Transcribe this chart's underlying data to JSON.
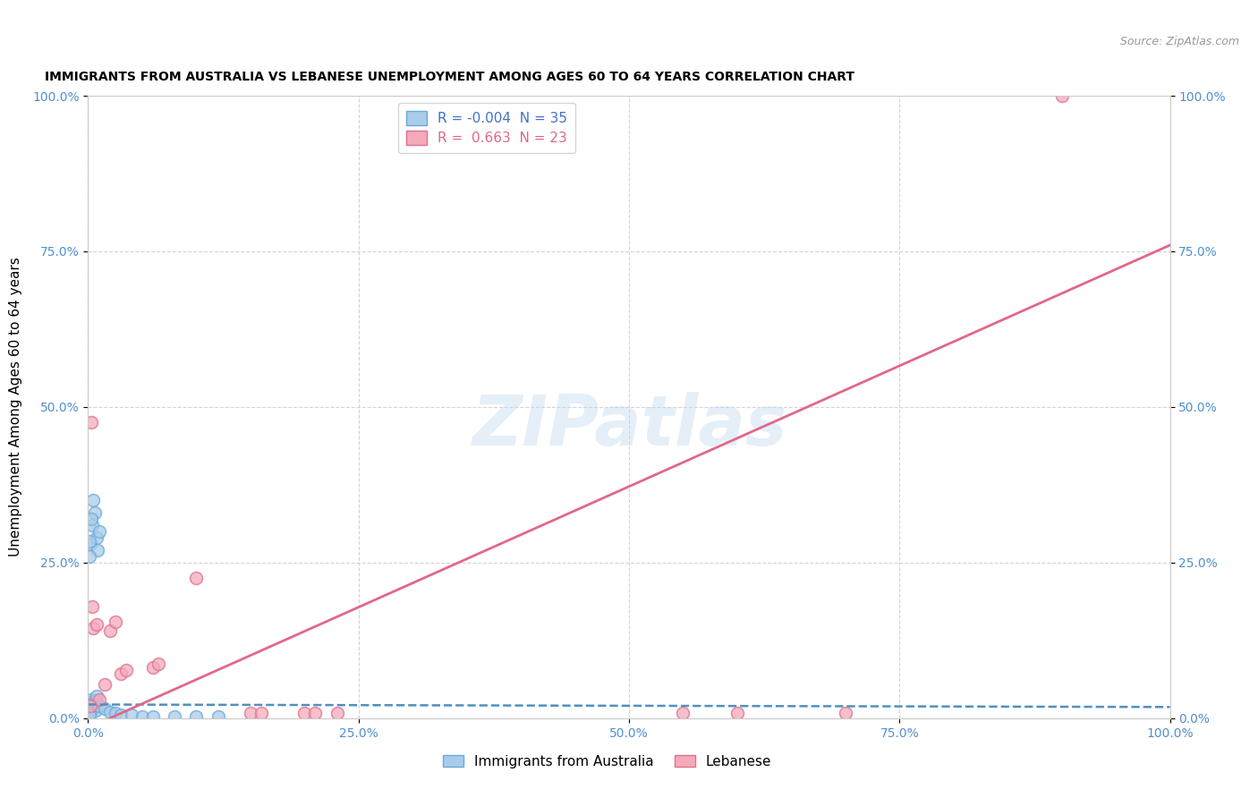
{
  "title": "IMMIGRANTS FROM AUSTRALIA VS LEBANESE UNEMPLOYMENT AMONG AGES 60 TO 64 YEARS CORRELATION CHART",
  "source": "Source: ZipAtlas.com",
  "ylabel": "Unemployment Among Ages 60 to 64 years",
  "watermark": "ZIPatlas",
  "legend1_label": "Immigrants from Australia",
  "legend2_label": "Lebanese",
  "r1": "-0.004",
  "n1": "35",
  "r2": "0.663",
  "n2": "23",
  "color_blue_fill": "#A8CCEA",
  "color_blue_edge": "#6AAAD8",
  "color_pink_fill": "#F5AABC",
  "color_pink_edge": "#E07090",
  "color_blue_line": "#5090C0",
  "color_pink_line": "#E06888",
  "color_r_blue": "#4472C4",
  "color_r_pink": "#E06888",
  "background": "#FFFFFF",
  "grid_color": "#D0D0D0",
  "axis_tick_color": "#5090D0",
  "blue_scatter_x": [
    0.2,
    0.4,
    0.6,
    0.5,
    0.8,
    0.9,
    1.0,
    0.3,
    0.1,
    0.15,
    0.05,
    0.1,
    0.2,
    0.3,
    0.4,
    0.5,
    0.6,
    0.7,
    0.8,
    1.0,
    1.5,
    2.0,
    2.5,
    3.0,
    4.0,
    5.0,
    6.0,
    8.0,
    10.0,
    12.0,
    0.05,
    0.08,
    0.1,
    0.12,
    0.15
  ],
  "blue_scatter_y": [
    28.0,
    31.0,
    33.0,
    35.0,
    29.0,
    27.0,
    30.0,
    32.0,
    28.5,
    26.0,
    2.5,
    2.0,
    1.8,
    3.0,
    2.2,
    1.5,
    2.8,
    1.2,
    3.5,
    2.0,
    1.5,
    1.0,
    0.8,
    0.5,
    0.5,
    0.3,
    0.2,
    0.2,
    0.3,
    0.2,
    1.0,
    0.5,
    0.8,
    0.4,
    0.6
  ],
  "pink_scatter_x": [
    0.3,
    0.5,
    0.8,
    1.0,
    1.5,
    2.0,
    2.5,
    3.0,
    3.5,
    6.0,
    6.5,
    10.0,
    15.0,
    16.0,
    20.0,
    21.0,
    23.0,
    90.0,
    0.4,
    55.0,
    60.0,
    70.0,
    0.2
  ],
  "pink_scatter_y": [
    47.5,
    14.5,
    15.0,
    3.0,
    5.5,
    14.0,
    15.5,
    7.2,
    7.8,
    8.2,
    8.8,
    22.5,
    0.8,
    0.8,
    0.8,
    0.8,
    0.8,
    100.0,
    18.0,
    0.8,
    0.8,
    0.8,
    2.0
  ],
  "blue_trend_x": [
    0,
    100
  ],
  "blue_trend_y": [
    2.2,
    1.8
  ],
  "pink_trend_x": [
    2,
    100
  ],
  "pink_trend_y": [
    0,
    76.0
  ],
  "xmin": 0,
  "xmax": 100,
  "ymin": 0,
  "ymax": 100,
  "xtick_vals": [
    0,
    25,
    50,
    75,
    100
  ],
  "xtick_labels": [
    "0.0%",
    "25.0%",
    "50.0%",
    "75.0%",
    "100.0%"
  ],
  "ytick_vals": [
    0,
    25,
    50,
    75,
    100
  ],
  "ytick_labels": [
    "0.0%",
    "25.0%",
    "50.0%",
    "75.0%",
    "100.0%"
  ]
}
